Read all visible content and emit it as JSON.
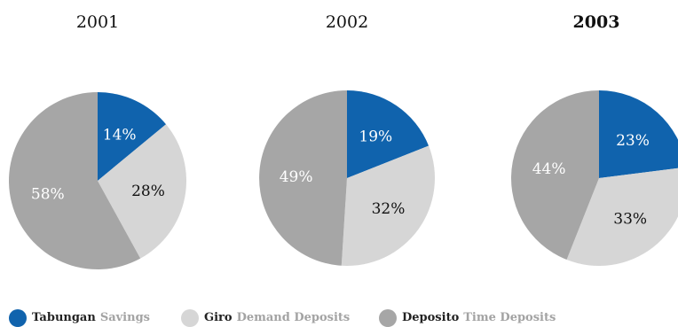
{
  "colors": {
    "savings": "#1063ad",
    "demand": "#d6d6d6",
    "time": "#a6a6a6"
  },
  "chart_data": [
    {
      "type": "pie",
      "title": "2001",
      "title_bold": false,
      "slices": [
        {
          "series": "savings",
          "value": 14,
          "label": "14%"
        },
        {
          "series": "demand",
          "value": 28,
          "label": "28%"
        },
        {
          "series": "time",
          "value": 58,
          "label": "58%"
        }
      ]
    },
    {
      "type": "pie",
      "title": "2002",
      "title_bold": false,
      "slices": [
        {
          "series": "savings",
          "value": 19,
          "label": "19%"
        },
        {
          "series": "demand",
          "value": 32,
          "label": "32%"
        },
        {
          "series": "time",
          "value": 49,
          "label": "49%"
        }
      ]
    },
    {
      "type": "pie",
      "title": "2003",
      "title_bold": true,
      "slices": [
        {
          "series": "savings",
          "value": 23,
          "label": "23%"
        },
        {
          "series": "demand",
          "value": 33,
          "label": "33%"
        },
        {
          "series": "time",
          "value": 44,
          "label": "44%"
        }
      ]
    }
  ],
  "legend": [
    {
      "series": "savings",
      "label_id": "Tabungan",
      "label_en": "Savings"
    },
    {
      "series": "demand",
      "label_id": "Giro",
      "label_en": "Demand Deposits"
    },
    {
      "series": "time",
      "label_id": "Deposito",
      "label_en": "Time Deposits"
    }
  ]
}
